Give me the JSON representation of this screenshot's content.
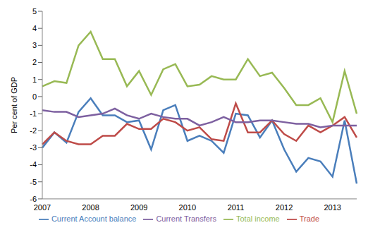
{
  "chart_data": {
    "type": "line",
    "y_label": "Per cent of GDP",
    "categories": [
      "2007",
      null,
      null,
      null,
      "2008",
      null,
      null,
      null,
      "2009",
      null,
      null,
      null,
      "2010",
      null,
      null,
      null,
      "2011",
      null,
      null,
      null,
      "2012",
      null,
      null,
      null,
      "2013",
      null,
      null
    ],
    "series": [
      {
        "name": "Current Account balance",
        "color": "#4a7ebb",
        "values": [
          -3.0,
          -2.1,
          -2.7,
          -0.9,
          -0.1,
          -1.1,
          -1.1,
          -1.5,
          -1.4,
          -3.1,
          -0.8,
          -0.5,
          -2.6,
          -2.3,
          -2.6,
          -3.3,
          -1.0,
          -1.1,
          -2.4,
          -1.4,
          -3.1,
          -4.4,
          -3.6,
          -3.8,
          -4.7,
          -1.4,
          -5.1
        ]
      },
      {
        "name": "Trade",
        "color": "#be4b48",
        "values": [
          -2.8,
          -2.1,
          -2.6,
          -2.8,
          -2.8,
          -2.3,
          -2.3,
          -1.6,
          -1.9,
          -1.9,
          -1.3,
          -1.5,
          -2.0,
          -1.8,
          -2.5,
          -2.6,
          -0.4,
          -2.1,
          -2.1,
          -1.4,
          -2.2,
          -2.6,
          -1.7,
          -2.1,
          -1.7,
          -1.2,
          -2.4
        ]
      },
      {
        "name": "Total income",
        "color": "#98b954",
        "values": [
          0.6,
          0.9,
          0.8,
          3.0,
          3.8,
          2.2,
          2.2,
          0.6,
          1.5,
          0.1,
          1.6,
          1.9,
          0.6,
          0.7,
          1.2,
          1.0,
          1.0,
          2.2,
          1.2,
          1.4,
          0.5,
          -0.5,
          -0.5,
          -0.1,
          -1.5,
          1.5,
          -1.0
        ]
      },
      {
        "name": "Current Transfers",
        "color": "#7d60a0",
        "values": [
          -0.8,
          -0.9,
          -0.9,
          -1.2,
          -1.1,
          -1.0,
          -0.7,
          -1.1,
          -1.3,
          -1.0,
          -1.2,
          -1.3,
          -1.3,
          -1.7,
          -1.5,
          -1.2,
          -1.5,
          -1.5,
          -1.4,
          -1.4,
          -1.5,
          -1.6,
          -1.6,
          -1.8,
          -1.7,
          -1.7,
          -1.7
        ]
      }
    ],
    "ylim": [
      -6,
      5
    ],
    "yticks": [
      -6,
      -5,
      -4,
      -3,
      -2,
      -1,
      0,
      1,
      2,
      3,
      4,
      5
    ],
    "grid": false,
    "legend": "bottom"
  }
}
